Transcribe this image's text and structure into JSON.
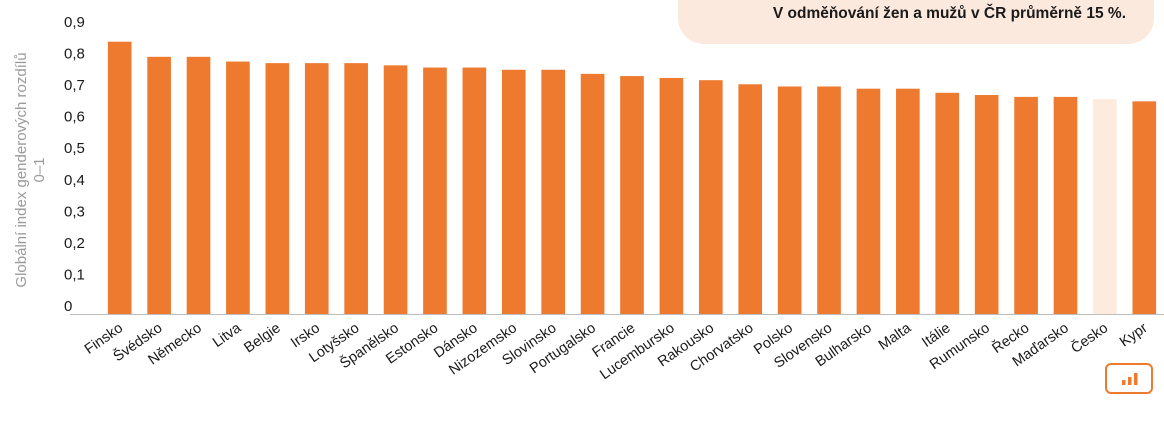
{
  "callout": {
    "text": "V odměňování žen a mužů v ČR průměrně 15 %."
  },
  "chart_view_icon": "bar-chart-icon",
  "colors": {
    "bar": "#ee7a30",
    "highlight_bar": "#fdebde",
    "axis": "#bdbdbd",
    "text": "#1a1a1a",
    "ylabel": "#9a9a9a"
  },
  "chart_data": {
    "type": "bar",
    "ylabel": "Globální index genderových rozdílů",
    "ylabel_sub": "0–1",
    "xlabel": "",
    "ylim": [
      0,
      0.9
    ],
    "yticks": [
      "0",
      "0,1",
      "0,2",
      "0,3",
      "0,4",
      "0,5",
      "0,6",
      "0,7",
      "0,8",
      "0,9"
    ],
    "grid": false,
    "highlight": "Česko",
    "categories": [
      "Finsko",
      "Švédsko",
      "Německo",
      "Litva",
      "Belgie",
      "Irsko",
      "Lotyšsko",
      "Španělsko",
      "Estonsko",
      "Dánsko",
      "Nizozemsko",
      "Slovinsko",
      "Portugalsko",
      "Francie",
      "Lucembursko",
      "Rakousko",
      "Chorvatsko",
      "Polsko",
      "Slovensko",
      "Bulharsko",
      "Malta",
      "Itálie",
      "Rumunsko",
      "Řecko",
      "Maďarsko",
      "Česko",
      "Kypr"
    ],
    "values": [
      0.863,
      0.815,
      0.815,
      0.8,
      0.795,
      0.795,
      0.795,
      0.788,
      0.781,
      0.781,
      0.774,
      0.774,
      0.761,
      0.754,
      0.748,
      0.741,
      0.728,
      0.721,
      0.721,
      0.714,
      0.714,
      0.701,
      0.694,
      0.688,
      0.688,
      0.681,
      0.674
    ]
  }
}
